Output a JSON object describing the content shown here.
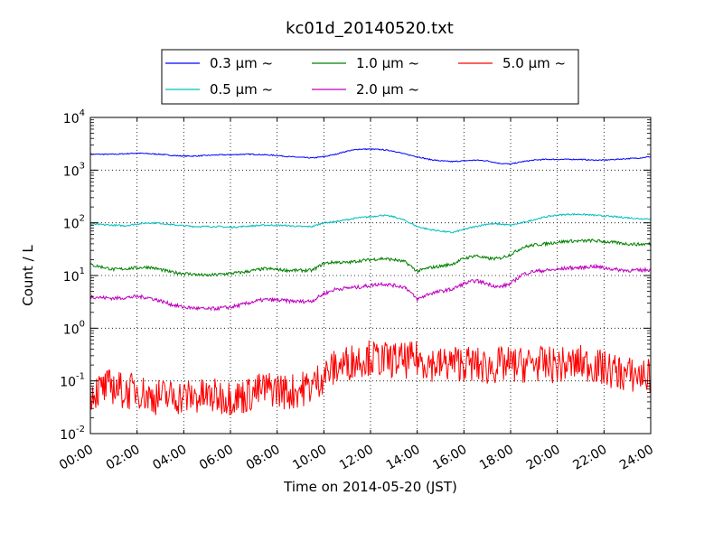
{
  "chart_data": {
    "type": "line",
    "title": "kc01d_20140520.txt",
    "xlabel": "Time on 2014-05-20 (JST)",
    "ylabel": "Count / L",
    "yscale": "log",
    "xlim": [
      "00:00",
      "24:00"
    ],
    "ylim": [
      0.01,
      10000
    ],
    "grid": true,
    "legend_position": "top-center (above plot)",
    "x_ticks": [
      "00:00",
      "02:00",
      "04:00",
      "06:00",
      "08:00",
      "10:00",
      "12:00",
      "14:00",
      "16:00",
      "18:00",
      "20:00",
      "22:00",
      "24:00"
    ],
    "y_ticks": [
      {
        "base": "10",
        "exp": "-2",
        "value": 0.01
      },
      {
        "base": "10",
        "exp": "-1",
        "value": 0.1
      },
      {
        "base": "10",
        "exp": "0",
        "value": 1
      },
      {
        "base": "10",
        "exp": "1",
        "value": 10
      },
      {
        "base": "10",
        "exp": "2",
        "value": 100
      },
      {
        "base": "10",
        "exp": "3",
        "value": 1000
      },
      {
        "base": "10",
        "exp": "4",
        "value": 10000
      }
    ],
    "x_hours": [
      0,
      0.5,
      1,
      1.5,
      2,
      2.5,
      3,
      3.5,
      4,
      4.5,
      5,
      5.5,
      6,
      6.5,
      7,
      7.5,
      8,
      8.5,
      9,
      9.5,
      10,
      10.5,
      11,
      11.5,
      12,
      12.5,
      13,
      13.5,
      14,
      14.5,
      15,
      15.5,
      16,
      16.5,
      17,
      17.5,
      18,
      18.5,
      19,
      19.5,
      20,
      20.5,
      21,
      21.5,
      22,
      22.5,
      23,
      23.5,
      24
    ],
    "series": [
      {
        "name": "0.3 μm ~",
        "color": "#0000ff",
        "noise": 0.01,
        "values": [
          2000,
          2000,
          2000,
          2050,
          2100,
          2050,
          2000,
          1900,
          1850,
          1850,
          1900,
          1950,
          1950,
          2000,
          2000,
          1950,
          1900,
          1800,
          1750,
          1700,
          1800,
          2000,
          2300,
          2500,
          2500,
          2450,
          2300,
          2000,
          1800,
          1600,
          1500,
          1450,
          1500,
          1550,
          1500,
          1350,
          1300,
          1450,
          1550,
          1600,
          1600,
          1600,
          1600,
          1550,
          1550,
          1600,
          1650,
          1700,
          1800
        ]
      },
      {
        "name": "0.5 μm ~",
        "color": "#00bfbf",
        "noise": 0.015,
        "values": [
          95,
          92,
          90,
          88,
          95,
          100,
          98,
          92,
          88,
          85,
          85,
          85,
          82,
          85,
          88,
          90,
          90,
          88,
          85,
          85,
          100,
          105,
          115,
          125,
          130,
          140,
          130,
          110,
          85,
          75,
          70,
          65,
          75,
          85,
          95,
          95,
          90,
          100,
          115,
          130,
          140,
          145,
          145,
          140,
          135,
          130,
          125,
          120,
          120
        ]
      },
      {
        "name": "1.0 μm ~",
        "color": "#008000",
        "noise": 0.03,
        "values": [
          16,
          14.5,
          13,
          13.5,
          14,
          14.5,
          13,
          11.5,
          11,
          10.5,
          10,
          10.5,
          11,
          11.5,
          12.5,
          13.5,
          13,
          12.5,
          12.5,
          12.5,
          17,
          18,
          17.5,
          19,
          20,
          21,
          20,
          18,
          12,
          14,
          15,
          16.5,
          21,
          24,
          21,
          21,
          25,
          34,
          38,
          40,
          43,
          45,
          45,
          46,
          44,
          42,
          40,
          39,
          40
        ]
      },
      {
        "name": "2.0 μm ~",
        "color": "#bf00bf",
        "noise": 0.035,
        "values": [
          4,
          3.8,
          3.7,
          3.8,
          4,
          3.8,
          3.3,
          2.8,
          2.5,
          2.4,
          2.3,
          2.4,
          2.5,
          2.8,
          3.2,
          3.5,
          3.4,
          3.3,
          3.2,
          3.3,
          4.5,
          5.5,
          5.8,
          6,
          6.5,
          7,
          6.5,
          6,
          3.5,
          4.5,
          5,
          5.5,
          7,
          8,
          7,
          6,
          7,
          10.5,
          12,
          12.5,
          13,
          14,
          14,
          15,
          14,
          13,
          12.5,
          12.5,
          13
        ]
      },
      {
        "name": "5.0 μm ~",
        "color": "#ff0000",
        "noise": 0.35,
        "values": [
          0.06,
          0.07,
          0.08,
          0.06,
          0.07,
          0.05,
          0.05,
          0.05,
          0.05,
          0.05,
          0.05,
          0.05,
          0.05,
          0.05,
          0.06,
          0.07,
          0.07,
          0.06,
          0.07,
          0.08,
          0.13,
          0.18,
          0.22,
          0.26,
          0.28,
          0.25,
          0.25,
          0.24,
          0.26,
          0.22,
          0.2,
          0.22,
          0.22,
          0.2,
          0.18,
          0.2,
          0.2,
          0.2,
          0.22,
          0.2,
          0.2,
          0.2,
          0.22,
          0.2,
          0.17,
          0.15,
          0.13,
          0.13,
          0.12
        ]
      }
    ]
  }
}
